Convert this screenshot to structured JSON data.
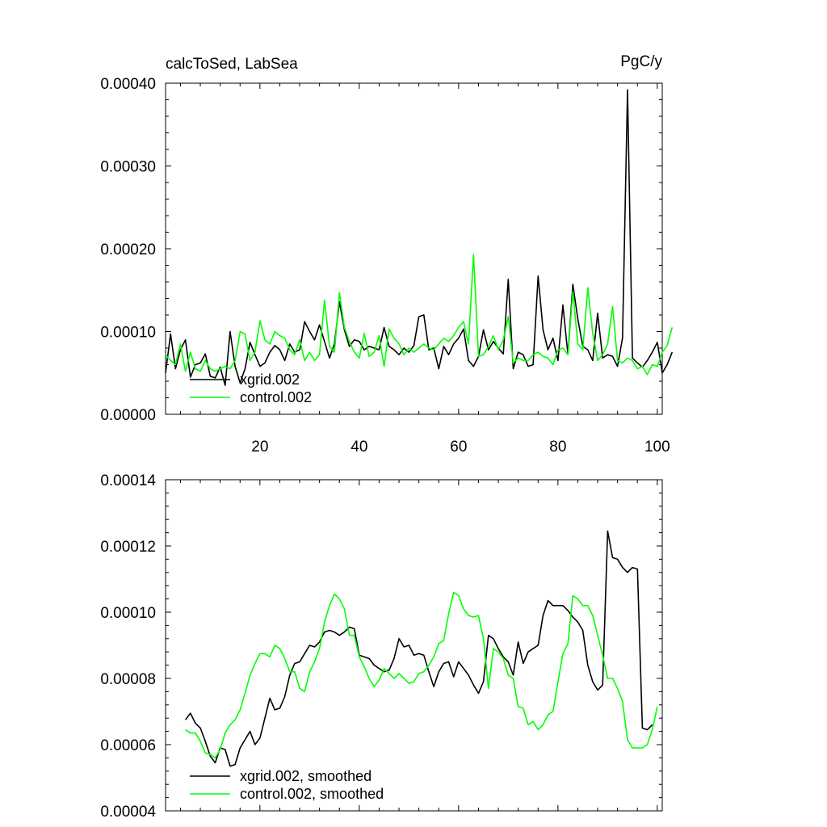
{
  "chart_data": [
    {
      "type": "line",
      "title": "calcToSed, LabSea",
      "units": "PgC/y",
      "xlim": [
        1,
        101
      ],
      "ylim": [
        0,
        0.0004
      ],
      "x_ticks": [
        20,
        40,
        60,
        80,
        100
      ],
      "x_tick_labels": [
        "20",
        "40",
        "60",
        "80",
        "100"
      ],
      "y_ticks": [
        0,
        0.0001,
        0.0002,
        0.0003,
        0.0004
      ],
      "y_tick_labels": [
        "0.00000",
        "0.00010",
        "0.00020",
        "0.00030",
        "0.00040"
      ],
      "legend": [
        "xgrid.002",
        "control.002"
      ],
      "x_start": 1,
      "series": [
        {
          "name": "xgrid.002",
          "color": "#000000",
          "values": [
            5e-05,
            9.7e-05,
            5.5e-05,
            7.8e-05,
            9e-05,
            4.5e-05,
            6e-05,
            6.2e-05,
            7.3e-05,
            4.6e-05,
            4.4e-05,
            5.7e-05,
            3.5e-05,
            0.0001,
            5.8e-05,
            3.8e-05,
            5.5e-05,
            8.7e-05,
            7.2e-05,
            5.8e-05,
            6.2e-05,
            7.5e-05,
            8.3e-05,
            7.8e-05,
            6.5e-05,
            8.5e-05,
            7.5e-05,
            7.8e-05,
            0.000112,
            0.0001,
            9e-05,
            0.000108,
            8.8e-05,
            6.8e-05,
            8.5e-05,
            0.000136,
            0.000102,
            8.2e-05,
            9e-05,
            8.8e-05,
            7.8e-05,
            8.2e-05,
            8e-05,
            7.8e-05,
            0.000105,
            8.2e-05,
            7.8e-05,
            7.2e-05,
            8e-05,
            7.5e-05,
            8.3e-05,
            0.000118,
            0.00012,
            7.8e-05,
            8e-05,
            5.5e-05,
            8.2e-05,
            7.2e-05,
            8.5e-05,
            9.2e-05,
            0.000103,
            6.5e-05,
            5.8e-05,
            7e-05,
            0.000102,
            7.8e-05,
            8.8e-05,
            8e-05,
            7.3e-05,
            0.000163,
            5.5e-05,
            7.5e-05,
            7.2e-05,
            5.8e-05,
            6e-05,
            0.000167,
            0.000102,
            7.8e-05,
            9.2e-05,
            6.5e-05,
            0.000132,
            7.2e-05,
            0.000157,
            0.000115,
            8.2e-05,
            7.8e-05,
            6.5e-05,
            0.000122,
            6.8e-05,
            7.2e-05,
            7e-05,
            5.8e-05,
            9.2e-05,
            0.000392,
            6.8e-05,
            6.2e-05,
            5.7e-05,
            6.5e-05,
            7.5e-05,
            8.7e-05,
            5e-05,
            6e-05,
            7.5e-05
          ]
        },
        {
          "name": "control.002",
          "color": "#00ff00",
          "values": [
            7.2e-05,
            6.5e-05,
            6e-05,
            8.5e-05,
            5.2e-05,
            7.5e-05,
            5.5e-05,
            5.2e-05,
            6.5e-05,
            5.5e-05,
            5.2e-05,
            5.5e-05,
            5.8e-05,
            5.5e-05,
            6.5e-05,
            0.0001,
            9.7e-05,
            6.5e-05,
            7.5e-05,
            0.000113,
            9e-05,
            8.5e-05,
            0.0001,
            9.5e-05,
            9.2e-05,
            7.8e-05,
            7.2e-05,
            9e-05,
            6.5e-05,
            7.5e-05,
            6.5e-05,
            7.2e-05,
            0.000138,
            8.2e-05,
            7.5e-05,
            0.000147,
            0.000105,
            8.8e-05,
            7.5e-05,
            6.8e-05,
            9.8e-05,
            7e-05,
            7.5e-05,
            9.5e-05,
            5.8e-05,
            0.000103,
            9.2e-05,
            8.5e-05,
            7.2e-05,
            8e-05,
            7.5e-05,
            8e-05,
            8.5e-05,
            8e-05,
            7.8e-05,
            8.5e-05,
            9.2e-05,
            8.8e-05,
            9.5e-05,
            0.000105,
            0.000112,
            8.5e-05,
            0.000193,
            7e-05,
            7.2e-05,
            8.2e-05,
            9.5e-05,
            7.8e-05,
            9e-05,
            0.000118,
            6.2e-05,
            6.8e-05,
            6.5e-05,
            6.5e-05,
            7.2e-05,
            7.5e-05,
            7e-05,
            6.8e-05,
            6e-05,
            7.8e-05,
            8e-05,
            7.2e-05,
            0.000148,
            8.5e-05,
            7.8e-05,
            0.000153,
            9.8e-05,
            6.5e-05,
            7.2e-05,
            8.5e-05,
            0.00013,
            6.5e-05,
            6.2e-05,
            6.8e-05,
            6.5e-05,
            5.5e-05,
            5.8e-05,
            4.8e-05,
            6e-05,
            5.8e-05,
            7.5e-05,
            8.3e-05,
            0.000105
          ]
        }
      ]
    },
    {
      "type": "line",
      "xlim": [
        1,
        101
      ],
      "ylim": [
        4e-05,
        0.00014
      ],
      "x_ticks": [
        20,
        40,
        60,
        80,
        100
      ],
      "y_ticks": [
        4e-05,
        6e-05,
        8e-05,
        0.0001,
        0.00012,
        0.00014
      ],
      "y_tick_labels": [
        "0.00004",
        "0.00006",
        "0.00008",
        "0.00010",
        "0.00012",
        "0.00014"
      ],
      "legend": [
        "xgrid.002, smoothed",
        "control.002, smoothed"
      ],
      "x_start": 5,
      "series": [
        {
          "name": "xgrid.002, smoothed",
          "color": "#000000",
          "values": [
            6.75e-05,
            6.95e-05,
            6.65e-05,
            6.5e-05,
            6.1e-05,
            5.65e-05,
            5.45e-05,
            5.9e-05,
            5.85e-05,
            5.35e-05,
            5.4e-05,
            5.9e-05,
            6.15e-05,
            6.4e-05,
            6e-05,
            6.2e-05,
            6.8e-05,
            7.4e-05,
            7.05e-05,
            7.1e-05,
            7.45e-05,
            8.1e-05,
            8.45e-05,
            8.5e-05,
            8.75e-05,
            9e-05,
            8.95e-05,
            9.1e-05,
            9.4e-05,
            9.45e-05,
            9.4e-05,
            9.3e-05,
            9.4e-05,
            9.55e-05,
            9.5e-05,
            8.7e-05,
            8.65e-05,
            8.6e-05,
            8.4e-05,
            8.3e-05,
            8.2e-05,
            8.25e-05,
            8.6e-05,
            9.2e-05,
            8.95e-05,
            9e-05,
            8.7e-05,
            8.75e-05,
            8.7e-05,
            8.2e-05,
            7.75e-05,
            8.2e-05,
            8.45e-05,
            8.5e-05,
            8.05e-05,
            8.5e-05,
            8.3e-05,
            8.1e-05,
            7.8e-05,
            7.55e-05,
            7.9e-05,
            9.3e-05,
            9.2e-05,
            8.9e-05,
            8.65e-05,
            8.5e-05,
            8.1e-05,
            9.1e-05,
            8.45e-05,
            8.8e-05,
            8.9e-05,
            9e-05,
            9.9e-05,
            0.0001035,
            0.000102,
            0.000102,
            0.000102,
            0.0001005,
            9.85e-05,
            9.7e-05,
            9.45e-05,
            8.4e-05,
            7.9e-05,
            7.65e-05,
            7.8e-05,
            0.0001245,
            0.0001165,
            0.000116,
            0.0001135,
            0.000112,
            0.0001135,
            0.000113,
            6.5e-05,
            6.45e-05,
            6.6e-05
          ]
        },
        {
          "name": "control.002, smoothed",
          "color": "#00ff00",
          "values": [
            6.45e-05,
            6.35e-05,
            6.35e-05,
            6.1e-05,
            5.75e-05,
            5.7e-05,
            5.6e-05,
            5.85e-05,
            6.35e-05,
            6.6e-05,
            6.75e-05,
            7.05e-05,
            7.55e-05,
            8.1e-05,
            8.45e-05,
            8.75e-05,
            8.75e-05,
            8.65e-05,
            9e-05,
            8.9e-05,
            8.6e-05,
            8.2e-05,
            8.2e-05,
            7.7e-05,
            7.6e-05,
            8.2e-05,
            8.5e-05,
            8.9e-05,
            9.7e-05,
            0.000102,
            0.0001055,
            0.000104,
            0.000101,
            9.3e-05,
            9.3e-05,
            8.65e-05,
            8.35e-05,
            8e-05,
            7.75e-05,
            7.95e-05,
            8.3e-05,
            8.15e-05,
            8e-05,
            8.15e-05,
            8e-05,
            7.85e-05,
            7.9e-05,
            8.15e-05,
            8.2e-05,
            8.4e-05,
            8.65e-05,
            9.05e-05,
            9.15e-05,
            9.95e-05,
            0.000106,
            0.000105,
            0.000101,
            9.9e-05,
            9.85e-05,
            9.9e-05,
            9.2e-05,
            7.7e-05,
            8.9e-05,
            8.8e-05,
            8.6e-05,
            8.1e-05,
            8e-05,
            7.15e-05,
            7.1e-05,
            6.6e-05,
            6.7e-05,
            6.45e-05,
            6.6e-05,
            6.9e-05,
            7e-05,
            7.9e-05,
            8.75e-05,
            9.05e-05,
            0.000105,
            0.000104,
            0.000102,
            0.000102,
            9.9e-05,
            9.3e-05,
            8.7e-05,
            8e-05,
            8e-05,
            7.7e-05,
            7.3e-05,
            6.15e-05,
            5.9e-05,
            5.9e-05,
            5.9e-05,
            6e-05,
            6.45e-05,
            7.15e-05
          ]
        }
      ]
    }
  ]
}
